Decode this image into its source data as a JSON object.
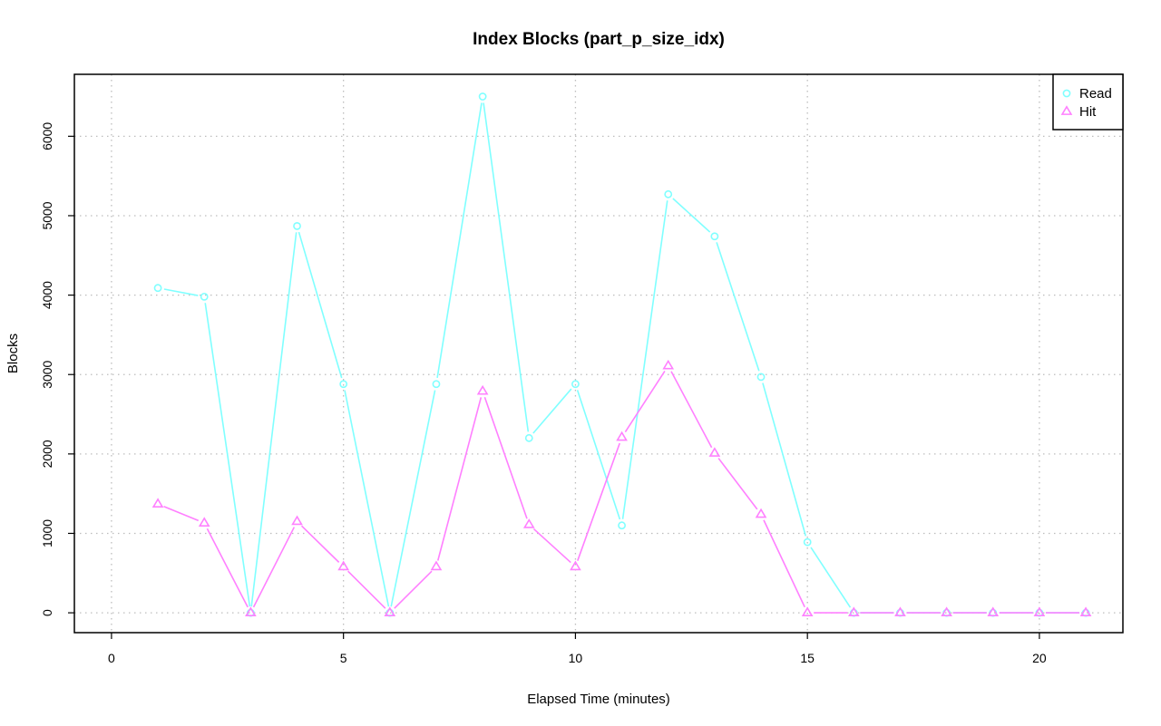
{
  "chart_data": {
    "type": "line",
    "title": "Index Blocks (part_p_size_idx)",
    "xlabel": "Elapsed Time (minutes)",
    "ylabel": "Blocks",
    "xlim": [
      -0.8,
      21.8
    ],
    "ylim": [
      -250,
      6780
    ],
    "x_ticks": [
      0,
      5,
      10,
      15,
      20
    ],
    "y_ticks": [
      0,
      1000,
      2000,
      3000,
      4000,
      5000,
      6000
    ],
    "grid": true,
    "legend_position": "top-right",
    "x": [
      1,
      2,
      3,
      4,
      5,
      6,
      7,
      8,
      9,
      10,
      11,
      12,
      13,
      14,
      15,
      16,
      17,
      18,
      19,
      20,
      21
    ],
    "series": [
      {
        "name": "Read",
        "color": "#80ffff",
        "marker": "circle",
        "values": [
          4090,
          3980,
          0,
          4870,
          2880,
          0,
          2880,
          6500,
          2200,
          2880,
          1100,
          5270,
          4740,
          2970,
          890,
          0,
          0,
          0,
          0,
          0,
          0
        ]
      },
      {
        "name": "Hit",
        "color": "#ff80ff",
        "marker": "triangle",
        "values": [
          1370,
          1130,
          0,
          1150,
          580,
          0,
          580,
          2790,
          1110,
          580,
          2210,
          3110,
          2010,
          1240,
          0,
          0,
          0,
          0,
          0,
          0,
          0
        ]
      }
    ]
  }
}
